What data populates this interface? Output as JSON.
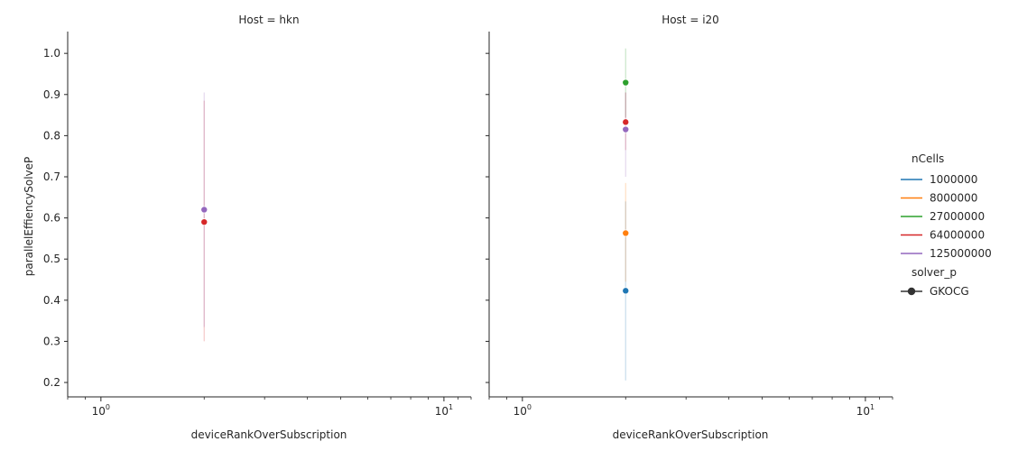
{
  "chart_data": {
    "type": "scatter",
    "facet_variable": "Host",
    "x_variable": "deviceRankOverSubscription",
    "y_variable": "parallelEffiencySolveP",
    "xscale": "log",
    "xlim": [
      0.8,
      12
    ],
    "ylim": [
      0.165,
      1.053
    ],
    "yticks": [
      0.2,
      0.3,
      0.4,
      0.5,
      0.6,
      0.7,
      0.8,
      0.9,
      1.0
    ],
    "ytick_labels": [
      "0.2",
      "0.3",
      "0.4",
      "0.5",
      "0.6",
      "0.7",
      "0.8",
      "0.9",
      "1.0"
    ],
    "xticks": [
      1,
      10
    ],
    "grid": false,
    "legend_position": "right",
    "legend": {
      "hue_title": "nCells",
      "hue_entries": [
        {
          "label": "1000000",
          "color": "#1f77b4"
        },
        {
          "label": "8000000",
          "color": "#ff7f0e"
        },
        {
          "label": "27000000",
          "color": "#2ca02c"
        },
        {
          "label": "64000000",
          "color": "#d62728"
        },
        {
          "label": "125000000",
          "color": "#9467bd"
        }
      ],
      "style_title": "solver_p",
      "style_entries": [
        {
          "label": "GKOCG",
          "color": "#333333"
        }
      ]
    },
    "panels": [
      {
        "title": "Host = hkn",
        "xlabel": "deviceRankOverSubscription",
        "ylabel": "parallelEffiencySolveP",
        "series": [
          {
            "name": "64000000",
            "color": "#d62728",
            "x": 2,
            "y": 0.59,
            "ci": [
              0.3,
              0.885
            ]
          },
          {
            "name": "125000000",
            "color": "#9467bd",
            "x": 2,
            "y": 0.62,
            "ci": [
              0.335,
              0.905
            ]
          }
        ]
      },
      {
        "title": "Host = i20",
        "xlabel": "deviceRankOverSubscription",
        "ylabel": "",
        "series": [
          {
            "name": "1000000",
            "color": "#1f77b4",
            "x": 2,
            "y": 0.423,
            "ci": [
              0.205,
              0.64
            ]
          },
          {
            "name": "8000000",
            "color": "#ff7f0e",
            "x": 2,
            "y": 0.563,
            "ci": [
              0.445,
              0.685
            ]
          },
          {
            "name": "27000000",
            "color": "#2ca02c",
            "x": 2,
            "y": 0.929,
            "ci": [
              0.845,
              1.012
            ]
          },
          {
            "name": "64000000",
            "color": "#d62728",
            "x": 2,
            "y": 0.833,
            "ci": [
              0.765,
              0.905
            ]
          },
          {
            "name": "125000000",
            "color": "#9467bd",
            "x": 2,
            "y": 0.815,
            "ci": [
              0.7,
              0.905
            ]
          }
        ]
      }
    ]
  }
}
